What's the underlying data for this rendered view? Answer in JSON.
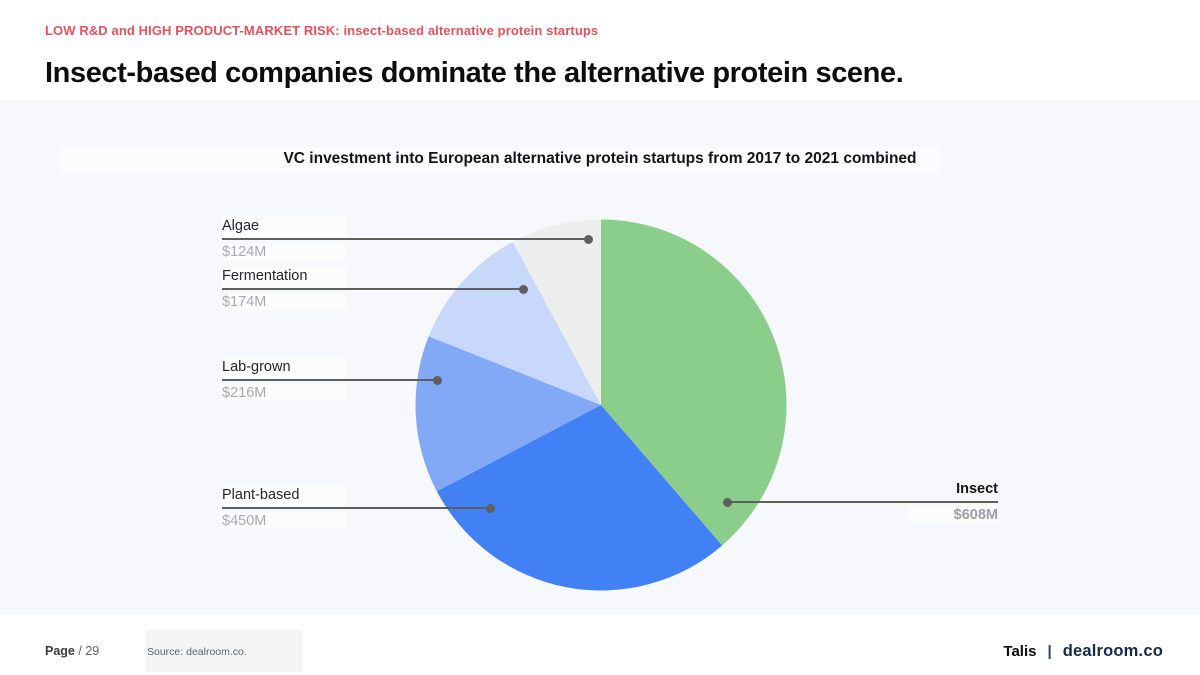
{
  "header": {
    "kicker": "LOW R&D and HIGH PRODUCT-MARKET RISK: insect-based alternative protein startups",
    "title": "Insect-based companies dominate the alternative protein scene."
  },
  "colors": {
    "kicker_red": "#e0525e",
    "panel_bg": "#f7f8fb",
    "callout_line": "#5f5f5f",
    "brand_navy": "#15294d"
  },
  "chart_data": {
    "type": "pie",
    "title": "VC investment into European alternative protein startups from 2017 to 2021 combined",
    "unit": "$M",
    "total": 1572,
    "start_angle": "top, clockwise",
    "legend": "none",
    "label_style": "callouts",
    "slices": [
      {
        "label": "Insect",
        "value": 608,
        "display_value": "$608M",
        "color": "#8BCE8C"
      },
      {
        "label": "Plant-based",
        "value": 450,
        "display_value": "$450M",
        "color": "#4280F5"
      },
      {
        "label": "Lab-grown",
        "value": 216,
        "display_value": "$216M",
        "color": "#82A9F5"
      },
      {
        "label": "Fermentation",
        "value": 174,
        "display_value": "$174M",
        "color": "#C7D8FB"
      },
      {
        "label": "Algae",
        "value": 124,
        "display_value": "$124M",
        "color": "#EDEEEE"
      }
    ]
  },
  "footer": {
    "page_label": "Page",
    "page_number": "/ 29",
    "source": "Source: dealroom.co.",
    "brand_left": "Talis",
    "separator": "|",
    "brand_right": "dealroom.co"
  }
}
